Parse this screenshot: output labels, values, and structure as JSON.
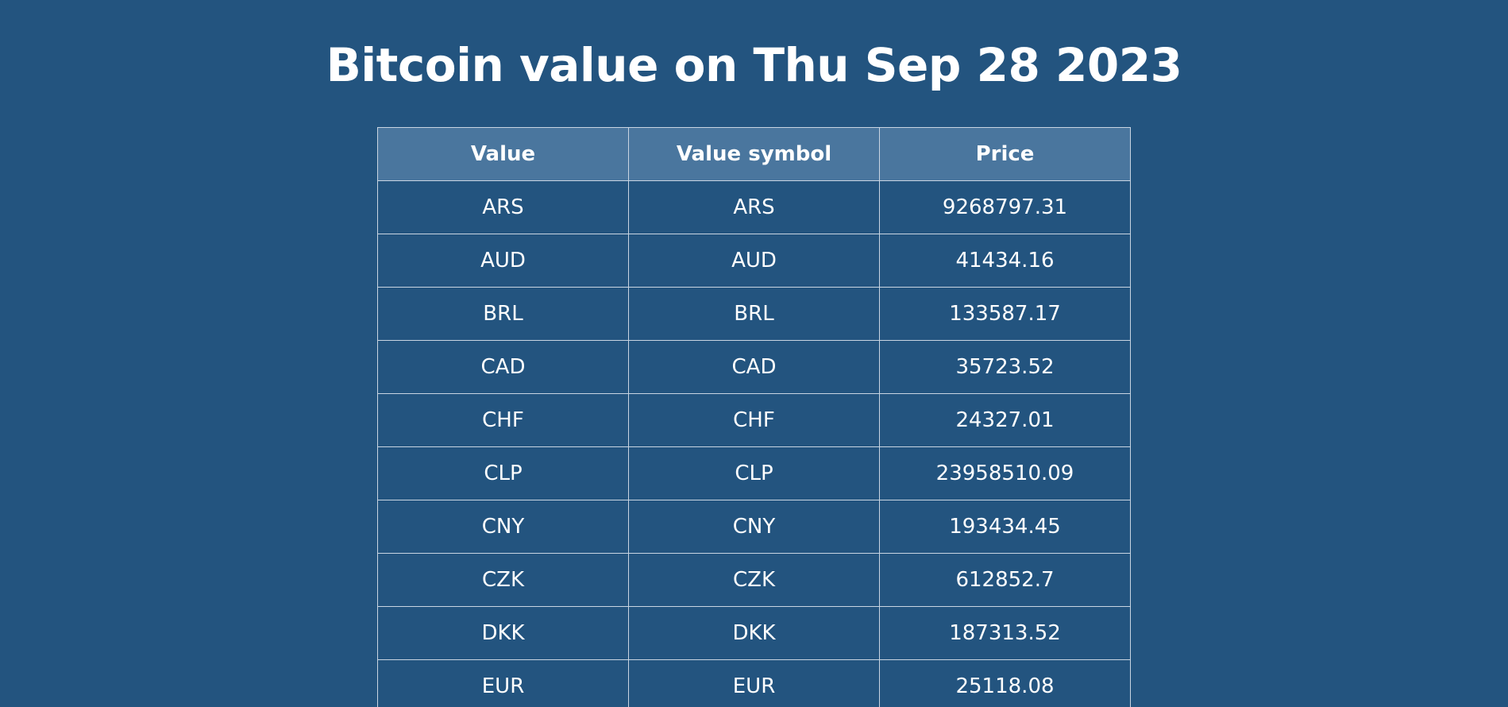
{
  "page": {
    "title": "Bitcoin value on Thu Sep 28 2023"
  },
  "table": {
    "headers": [
      "Value",
      "Value symbol",
      "Price"
    ],
    "rows": [
      {
        "value": "ARS",
        "symbol": "ARS",
        "price": "9268797.31"
      },
      {
        "value": "AUD",
        "symbol": "AUD",
        "price": "41434.16"
      },
      {
        "value": "BRL",
        "symbol": "BRL",
        "price": "133587.17"
      },
      {
        "value": "CAD",
        "symbol": "CAD",
        "price": "35723.52"
      },
      {
        "value": "CHF",
        "symbol": "CHF",
        "price": "24327.01"
      },
      {
        "value": "CLP",
        "symbol": "CLP",
        "price": "23958510.09"
      },
      {
        "value": "CNY",
        "symbol": "CNY",
        "price": "193434.45"
      },
      {
        "value": "CZK",
        "symbol": "CZK",
        "price": "612852.7"
      },
      {
        "value": "DKK",
        "symbol": "DKK",
        "price": "187313.52"
      },
      {
        "value": "EUR",
        "symbol": "EUR",
        "price": "25118.08"
      }
    ]
  }
}
